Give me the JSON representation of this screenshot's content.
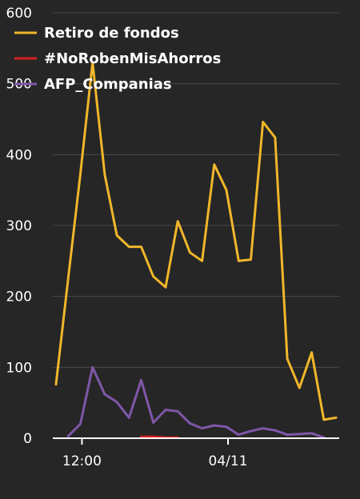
{
  "chart_data": {
    "type": "line",
    "ylim": [
      0,
      600
    ],
    "y_ticks": [
      0,
      100,
      200,
      300,
      400,
      500,
      600
    ],
    "x_tick_labels": [
      "12:00",
      "04/11"
    ],
    "grid": "horizontal",
    "legend_position": "top-left",
    "colors": {
      "background": "#262626",
      "grid": "#4a4a4a",
      "axis": "#ffffff"
    },
    "series": [
      {
        "name": "Retiro de fondos",
        "color": "#f0b62b",
        "values": [
          76,
          225,
          372,
          530,
          372,
          286,
          270,
          270,
          228,
          213,
          306,
          262,
          250,
          386,
          350,
          250,
          252,
          446,
          424,
          112,
          71,
          121,
          26,
          29
        ]
      },
      {
        "name": "#NoRobenMisAhorros",
        "color": "#d61f1f",
        "values": [
          null,
          null,
          null,
          null,
          null,
          null,
          null,
          2,
          2,
          1,
          1,
          null,
          null,
          null,
          null,
          null,
          null,
          null,
          null,
          null,
          null,
          null,
          null,
          null
        ]
      },
      {
        "name": "AFP_Companias",
        "color": "#7f57a8",
        "values": [
          null,
          3,
          20,
          100,
          62,
          51,
          29,
          82,
          22,
          40,
          38,
          21,
          14,
          18,
          16,
          5,
          10,
          14,
          11,
          5,
          6,
          7,
          1,
          null
        ]
      }
    ]
  }
}
